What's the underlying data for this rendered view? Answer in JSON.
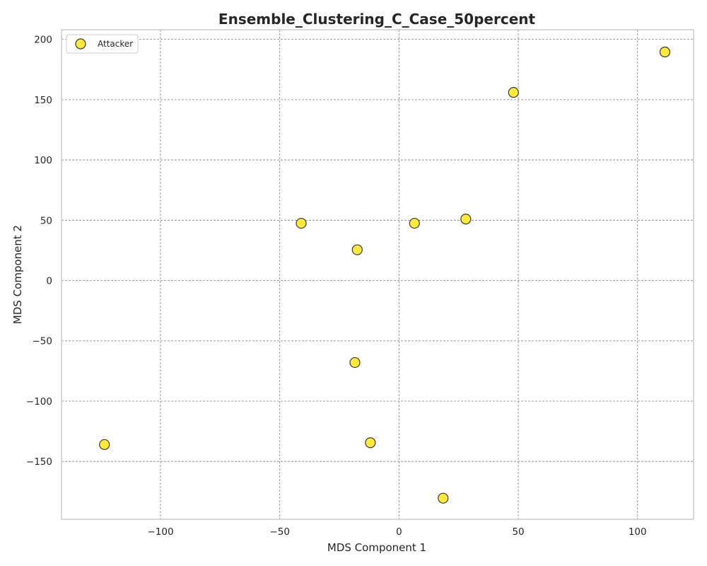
{
  "chart_data": {
    "type": "scatter",
    "title": "Ensemble_Clustering_C_Case_50percent",
    "xlabel": "MDS Component 1",
    "ylabel": "MDS Component 2",
    "xlim": [
      -141.5,
      123.5
    ],
    "ylim": [
      -198,
      208
    ],
    "xticks": [
      -100,
      -50,
      0,
      50,
      100
    ],
    "yticks": [
      200,
      150,
      100,
      50,
      0,
      -50,
      -100,
      -150
    ],
    "xtick_labels": [
      "−100",
      "−50",
      "0",
      "50",
      "100"
    ],
    "ytick_labels": [
      "200",
      "150",
      "100",
      "50",
      "0",
      "−50",
      "−100",
      "−150"
    ],
    "grid": true,
    "legend_position": "top-left",
    "series": [
      {
        "name": "Attacker",
        "color": "#ffe93b",
        "edge_color": "#3a3a3a",
        "points": [
          {
            "x": -123.5,
            "y": -136
          },
          {
            "x": -41,
            "y": 47.5
          },
          {
            "x": -17.5,
            "y": 25.5
          },
          {
            "x": -18.5,
            "y": -68
          },
          {
            "x": -12,
            "y": -134.5
          },
          {
            "x": 6.5,
            "y": 47.5
          },
          {
            "x": 28,
            "y": 51
          },
          {
            "x": 18.5,
            "y": -180.5
          },
          {
            "x": 48,
            "y": 156
          },
          {
            "x": 111.5,
            "y": 189.5
          }
        ]
      }
    ]
  }
}
